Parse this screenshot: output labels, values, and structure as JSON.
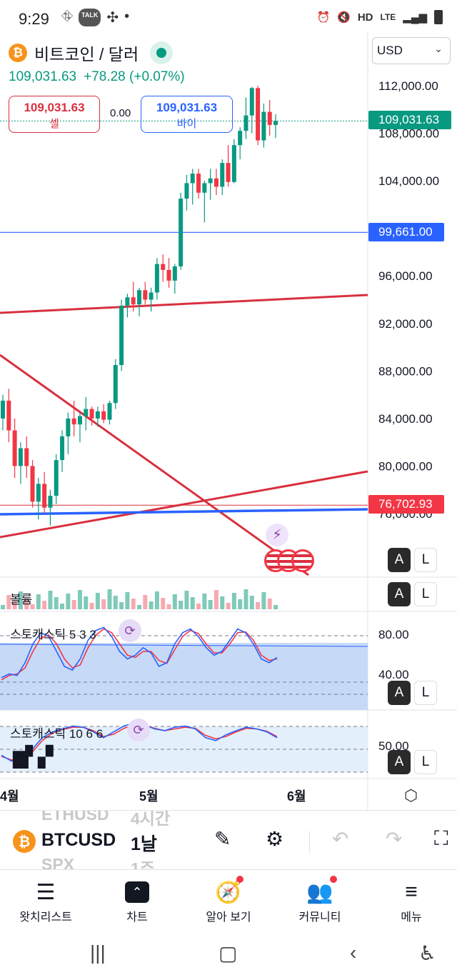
{
  "status": {
    "time": "9:29",
    "left_icons": [
      "app-icon",
      "kakaotalk-icon",
      "network-icon",
      "dot-icon"
    ],
    "talk": "TALK",
    "right_icons": [
      "alarm-icon",
      "mute-icon",
      "hd-voice-icon",
      "lte-icon",
      "signal-icon",
      "battery-icon"
    ],
    "hd": "HD",
    "lte": "LTE"
  },
  "header": {
    "symbol_title": "비트코인 / 달러",
    "last_price": "109,031.63",
    "change": "+78.28 (+0.07%)",
    "sell_price": "109,031.63",
    "sell_label": "셀",
    "spread": "0.00",
    "buy_price": "109,031.63",
    "buy_label": "바이",
    "currency": "USD"
  },
  "price_axis": {
    "labels": [
      "112,000.00",
      "108,000.00",
      "104,000.00",
      "96,000.00",
      "92,000.00",
      "88,000.00",
      "84,000.00",
      "80,000.00",
      "76,000.00"
    ],
    "tag_current": "109,031.63",
    "tag_blue": "99,661.00",
    "tag_red": "76,702.93",
    "colors": {
      "up": "#089981",
      "down": "#f23645",
      "line_blue": "#2962ff",
      "line_red": "#d8303f"
    }
  },
  "panes": {
    "volume_label": "볼륨",
    "stoch1_label": "스토캐스틱 5 3 3",
    "stoch1_axis": [
      "80.00",
      "40.00"
    ],
    "stoch2_label": "스토캐스틱 10 6 6",
    "stoch2_axis": "50.00",
    "a_label": "A",
    "l_label": "L"
  },
  "time_axis": {
    "months": [
      "4월",
      "5월",
      "6월"
    ]
  },
  "symbol_bar": {
    "ghost_symbols": [
      "ETHUSD",
      "SPX"
    ],
    "ghost_timeframes": [
      "4시간",
      "1주"
    ],
    "symbol": "BTCUSD",
    "timeframe": "1날"
  },
  "bottom_nav": [
    {
      "label": "왓치리스트",
      "icon": "watchlist-icon"
    },
    {
      "label": "차트",
      "icon": "chart-icon"
    },
    {
      "label": "알아 보기",
      "icon": "compass-icon"
    },
    {
      "label": "커뮤니티",
      "icon": "community-icon"
    },
    {
      "label": "메뉴",
      "icon": "menu-icon"
    }
  ],
  "chart_data": {
    "type": "candlestick",
    "symbol": "BTCUSD",
    "interval": "1D",
    "ylim": [
      74000,
      114000
    ],
    "candles": [
      [
        84000,
        86000,
        83000,
        85500
      ],
      [
        85500,
        86500,
        82000,
        83000
      ],
      [
        83000,
        84000,
        79000,
        80000
      ],
      [
        80000,
        82000,
        78500,
        81500
      ],
      [
        81500,
        82500,
        79000,
        80000
      ],
      [
        80000,
        80500,
        76500,
        77000
      ],
      [
        77000,
        79000,
        75500,
        78500
      ],
      [
        78500,
        79500,
        76000,
        76500
      ],
      [
        76500,
        78000,
        75000,
        77500
      ],
      [
        77500,
        81000,
        76800,
        80500
      ],
      [
        80500,
        83000,
        79500,
        82500
      ],
      [
        82500,
        84500,
        81000,
        84000
      ],
      [
        84000,
        85500,
        82500,
        83500
      ],
      [
        83500,
        84500,
        82000,
        84200
      ],
      [
        84200,
        85800,
        83000,
        84800
      ],
      [
        84800,
        85000,
        83400,
        84000
      ],
      [
        84000,
        85000,
        83300,
        84600
      ],
      [
        84600,
        85200,
        83600,
        83900
      ],
      [
        83900,
        85500,
        83500,
        85300
      ],
      [
        85300,
        89000,
        84800,
        88500
      ],
      [
        88500,
        94000,
        88000,
        93500
      ],
      [
        93500,
        94500,
        92500,
        94200
      ],
      [
        94200,
        95500,
        93000,
        93600
      ],
      [
        93600,
        95000,
        92600,
        94800
      ],
      [
        94800,
        95500,
        93600,
        94000
      ],
      [
        94000,
        95000,
        93000,
        94600
      ],
      [
        94600,
        97500,
        94000,
        97000
      ],
      [
        97000,
        97800,
        95500,
        96500
      ],
      [
        96500,
        97500,
        95000,
        95600
      ],
      [
        95600,
        97000,
        94500,
        96800
      ],
      [
        96800,
        103000,
        96500,
        102500
      ],
      [
        102500,
        104500,
        101500,
        103800
      ],
      [
        103800,
        105000,
        102000,
        104600
      ],
      [
        104600,
        105000,
        102500,
        103000
      ],
      [
        103000,
        104000,
        100500,
        103800
      ],
      [
        103800,
        105000,
        102400,
        104200
      ],
      [
        104200,
        105000,
        102800,
        103500
      ],
      [
        103500,
        105800,
        102800,
        105500
      ],
      [
        105500,
        107000,
        103500,
        103900
      ],
      [
        103900,
        107500,
        103800,
        107000
      ],
      [
        107000,
        108500,
        105800,
        108200
      ],
      [
        108200,
        111000,
        107500,
        109500
      ],
      [
        109500,
        111900,
        108000,
        111800
      ],
      [
        111800,
        112000,
        107000,
        107400
      ],
      [
        107400,
        110500,
        106800,
        109800
      ],
      [
        109800,
        110800,
        107800,
        108700
      ],
      [
        108700,
        109600,
        107600,
        109030
      ]
    ],
    "horizontal_lines": [
      99661,
      76702.93
    ],
    "stochastic_5_3_3": {
      "k": [
        25,
        30,
        28,
        45,
        70,
        85,
        80,
        60,
        40,
        35,
        50,
        75,
        88,
        92,
        80,
        60,
        50,
        55,
        65,
        58,
        40,
        45,
        70,
        85,
        90,
        80,
        65,
        55,
        60,
        75,
        90,
        85,
        70,
        50,
        45,
        52
      ],
      "d": [
        22,
        28,
        30,
        38,
        60,
        78,
        82,
        70,
        50,
        38,
        42,
        65,
        82,
        90,
        85,
        70,
        55,
        52,
        60,
        60,
        48,
        44,
        62,
        80,
        88,
        84,
        70,
        58,
        58,
        70,
        85,
        86,
        75,
        55,
        48,
        50
      ]
    },
    "stochastic_10_6_6": {
      "k": [
        30,
        20,
        25,
        40,
        60,
        70,
        75,
        80,
        78,
        70,
        60,
        70,
        80,
        85,
        82,
        75,
        72,
        78,
        80,
        75,
        60,
        55,
        65,
        72,
        78,
        75,
        70,
        60
      ],
      "d": [
        28,
        22,
        24,
        35,
        55,
        68,
        74,
        78,
        78,
        72,
        62,
        66,
        76,
        82,
        82,
        76,
        72,
        75,
        78,
        76,
        64,
        58,
        62,
        70,
        76,
        75,
        71,
        62
      ]
    }
  }
}
